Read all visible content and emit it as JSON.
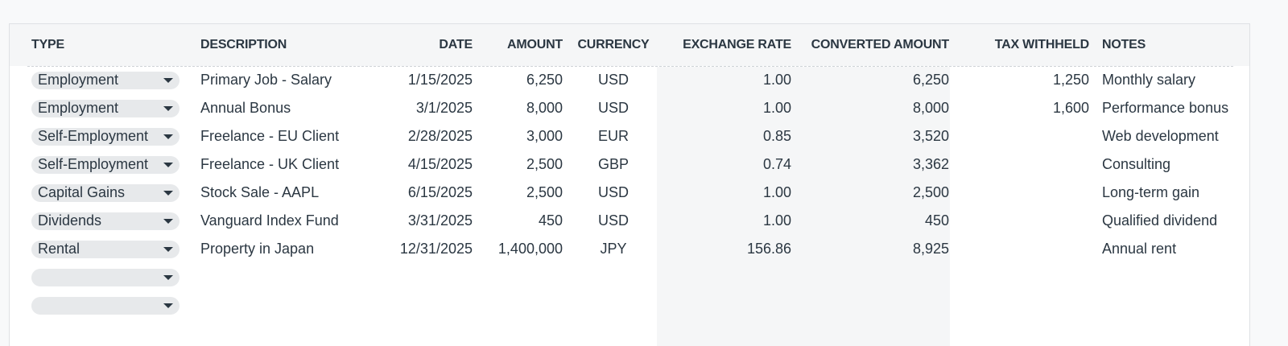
{
  "columns": [
    "Type",
    "Description",
    "Date",
    "Amount",
    "Currency",
    "Exchange Rate",
    "Converted Amount",
    "Tax Withheld",
    "Notes"
  ],
  "rows": [
    {
      "type": "Employment",
      "description": "Primary Job - Salary",
      "date": "1/15/2025",
      "amount": "6,250",
      "currency": "USD",
      "rate": "1.00",
      "converted": "6,250",
      "tax": "1,250",
      "notes": "Monthly salary"
    },
    {
      "type": "Employment",
      "description": "Annual Bonus",
      "date": "3/1/2025",
      "amount": "8,000",
      "currency": "USD",
      "rate": "1.00",
      "converted": "8,000",
      "tax": "1,600",
      "notes": "Performance bonus"
    },
    {
      "type": "Self-Employment",
      "description": "Freelance - EU Client",
      "date": "2/28/2025",
      "amount": "3,000",
      "currency": "EUR",
      "rate": "0.85",
      "converted": "3,520",
      "tax": "",
      "notes": "Web development"
    },
    {
      "type": "Self-Employment",
      "description": "Freelance - UK Client",
      "date": "4/15/2025",
      "amount": "2,500",
      "currency": "GBP",
      "rate": "0.74",
      "converted": "3,362",
      "tax": "",
      "notes": "Consulting"
    },
    {
      "type": "Capital Gains",
      "description": "Stock Sale - AAPL",
      "date": "6/15/2025",
      "amount": "2,500",
      "currency": "USD",
      "rate": "1.00",
      "converted": "2,500",
      "tax": "",
      "notes": "Long-term gain"
    },
    {
      "type": "Dividends",
      "description": "Vanguard Index Fund",
      "date": "3/31/2025",
      "amount": "450",
      "currency": "USD",
      "rate": "1.00",
      "converted": "450",
      "tax": "",
      "notes": "Qualified dividend"
    },
    {
      "type": "Rental",
      "description": "Property in Japan",
      "date": "12/31/2025",
      "amount": "1,400,000",
      "currency": "JPY",
      "rate": "156.86",
      "converted": "8,925",
      "tax": "",
      "notes": "Annual rent"
    },
    {
      "type": "",
      "description": "",
      "date": "",
      "amount": "",
      "currency": "",
      "rate": "",
      "converted": "",
      "tax": "",
      "notes": ""
    },
    {
      "type": "",
      "description": "",
      "date": "",
      "amount": "",
      "currency": "",
      "rate": "",
      "converted": "",
      "tax": "",
      "notes": ""
    }
  ]
}
